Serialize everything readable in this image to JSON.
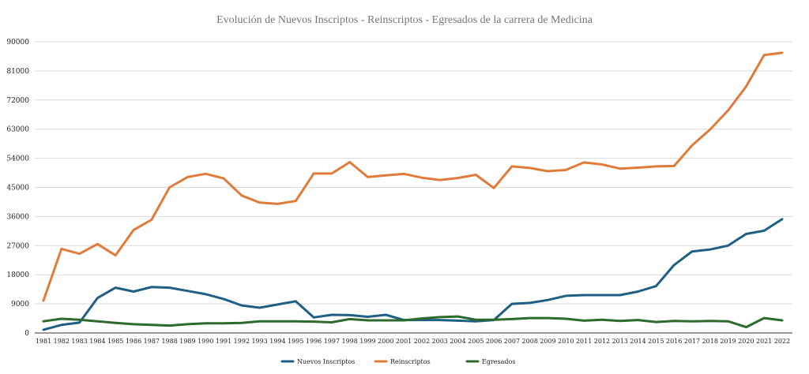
{
  "chart_data": {
    "type": "line",
    "title": "Evolución de Nuevos Inscriptos - Reinscriptos - Egresados de la carrera de Medicina",
    "xlabel": "",
    "ylabel": "",
    "ylim": [
      0,
      90000
    ],
    "yticks": [
      0,
      9000,
      18000,
      27000,
      36000,
      45000,
      54000,
      63000,
      72000,
      81000,
      90000
    ],
    "grid": true,
    "legend_position": "bottom",
    "categories": [
      "1981",
      "1982",
      "1983",
      "1984",
      "1985",
      "1986",
      "1987",
      "1988",
      "1989",
      "1990",
      "1991",
      "1992",
      "1993",
      "1994",
      "1995",
      "1996",
      "1997",
      "1998",
      "1999",
      "2000",
      "2001",
      "2002",
      "2003",
      "2004",
      "2005",
      "2006",
      "2007",
      "2008",
      "2009",
      "2010",
      "2011",
      "2012",
      "2013",
      "2014",
      "2015",
      "2016",
      "2017",
      "2018",
      "2019",
      "2020",
      "2021",
      "2022"
    ],
    "series": [
      {
        "name": "Nuevos Inscriptos",
        "color": "#1f5f85",
        "values": [
          1000,
          2500,
          3200,
          10800,
          14000,
          12800,
          14200,
          14000,
          13000,
          12000,
          10500,
          8500,
          7800,
          8800,
          9800,
          4800,
          5600,
          5500,
          5000,
          5600,
          4000,
          4000,
          4000,
          3800,
          3600,
          4000,
          9000,
          9300,
          10200,
          11500,
          11700,
          11700,
          11700,
          12800,
          14500,
          21000,
          25200,
          25800,
          27000,
          30600,
          31600,
          35200
        ]
      },
      {
        "name": "Reinscriptos",
        "color": "#e07b39",
        "values": [
          10000,
          26000,
          24500,
          27500,
          24000,
          31800,
          35000,
          45000,
          48200,
          49200,
          47800,
          42500,
          40300,
          39900,
          40800,
          49300,
          49300,
          52800,
          48200,
          48700,
          49200,
          48000,
          47300,
          47900,
          48900,
          44800,
          51500,
          51000,
          50000,
          50400,
          52700,
          52100,
          50800,
          51100,
          51500,
          51600,
          58000,
          62900,
          68800,
          76200,
          85900,
          86600
        ]
      },
      {
        "name": "Egresados",
        "color": "#2d6a2d",
        "values": [
          3600,
          4400,
          4100,
          3600,
          3100,
          2700,
          2500,
          2300,
          2700,
          3000,
          3000,
          3100,
          3600,
          3600,
          3600,
          3500,
          3300,
          4300,
          3900,
          3900,
          3900,
          4500,
          4900,
          5100,
          4100,
          4100,
          4300,
          4600,
          4600,
          4400,
          3800,
          4100,
          3700,
          4000,
          3400,
          3700,
          3600,
          3700,
          3600,
          1800,
          4600,
          3900
        ]
      }
    ]
  }
}
